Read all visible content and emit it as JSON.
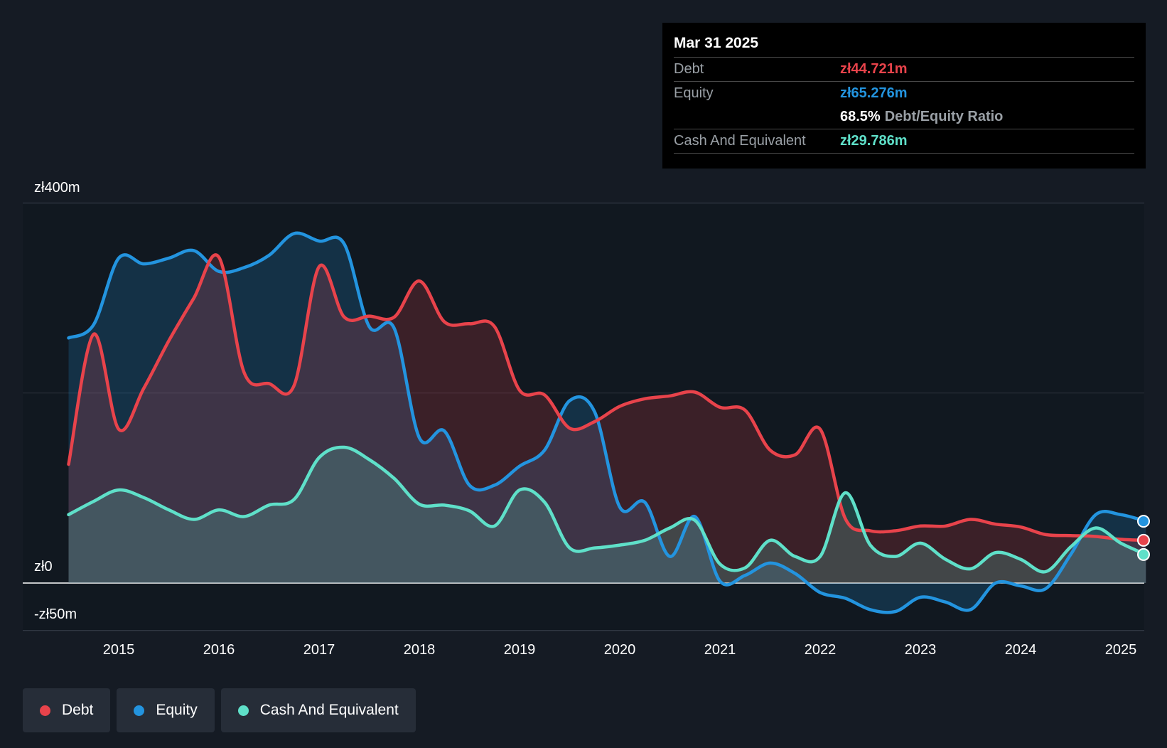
{
  "chart_data": {
    "type": "area",
    "y_axis": {
      "top_label": "zł400m",
      "zero_label": "zł0",
      "bottom_label": "-zł50m",
      "ylim": [
        -50,
        400
      ]
    },
    "x_ticks": [
      "2015",
      "2016",
      "2017",
      "2018",
      "2019",
      "2020",
      "2021",
      "2022",
      "2023",
      "2024",
      "2025"
    ],
    "grid": true,
    "legend_position": "bottom-left",
    "series": [
      {
        "name": "Debt",
        "color": "#e8434b",
        "points": [
          [
            2014.5,
            125
          ],
          [
            2014.75,
            262
          ],
          [
            2015.0,
            162
          ],
          [
            2015.25,
            205
          ],
          [
            2015.5,
            255
          ],
          [
            2015.75,
            300
          ],
          [
            2016.0,
            343
          ],
          [
            2016.25,
            222
          ],
          [
            2016.5,
            210
          ],
          [
            2016.75,
            208
          ],
          [
            2017.0,
            333
          ],
          [
            2017.25,
            280
          ],
          [
            2017.5,
            281
          ],
          [
            2017.75,
            280
          ],
          [
            2018.0,
            318
          ],
          [
            2018.25,
            275
          ],
          [
            2018.5,
            273
          ],
          [
            2018.75,
            270
          ],
          [
            2019.0,
            203
          ],
          [
            2019.25,
            198
          ],
          [
            2019.5,
            163
          ],
          [
            2019.75,
            170
          ],
          [
            2020.0,
            186
          ],
          [
            2020.25,
            194
          ],
          [
            2020.5,
            197
          ],
          [
            2020.75,
            201
          ],
          [
            2021.0,
            185
          ],
          [
            2021.25,
            182
          ],
          [
            2021.5,
            140
          ],
          [
            2021.75,
            135
          ],
          [
            2022.0,
            162
          ],
          [
            2022.25,
            68
          ],
          [
            2022.5,
            55
          ],
          [
            2022.75,
            55
          ],
          [
            2023.0,
            60
          ],
          [
            2023.25,
            60
          ],
          [
            2023.5,
            67
          ],
          [
            2023.75,
            62
          ],
          [
            2024.0,
            59
          ],
          [
            2024.25,
            51
          ],
          [
            2024.5,
            50
          ],
          [
            2024.75,
            49
          ],
          [
            2025.0,
            46
          ],
          [
            2025.25,
            45
          ]
        ]
      },
      {
        "name": "Equity",
        "color": "#2394df",
        "points": [
          [
            2014.5,
            258
          ],
          [
            2014.75,
            272
          ],
          [
            2015.0,
            342
          ],
          [
            2015.25,
            336
          ],
          [
            2015.5,
            342
          ],
          [
            2015.75,
            350
          ],
          [
            2016.0,
            328
          ],
          [
            2016.25,
            332
          ],
          [
            2016.5,
            345
          ],
          [
            2016.75,
            368
          ],
          [
            2017.0,
            360
          ],
          [
            2017.25,
            357
          ],
          [
            2017.5,
            270
          ],
          [
            2017.75,
            268
          ],
          [
            2018.0,
            153
          ],
          [
            2018.25,
            160
          ],
          [
            2018.5,
            103
          ],
          [
            2018.75,
            103
          ],
          [
            2019.0,
            123
          ],
          [
            2019.25,
            140
          ],
          [
            2019.5,
            192
          ],
          [
            2019.75,
            180
          ],
          [
            2020.0,
            80
          ],
          [
            2020.25,
            85
          ],
          [
            2020.5,
            28
          ],
          [
            2020.75,
            70
          ],
          [
            2021.0,
            2
          ],
          [
            2021.25,
            8
          ],
          [
            2021.5,
            21
          ],
          [
            2021.75,
            10
          ],
          [
            2022.0,
            -10
          ],
          [
            2022.25,
            -16
          ],
          [
            2022.5,
            -28
          ],
          [
            2022.75,
            -30
          ],
          [
            2023.0,
            -15
          ],
          [
            2023.25,
            -20
          ],
          [
            2023.5,
            -28
          ],
          [
            2023.75,
            0
          ],
          [
            2024.0,
            -3
          ],
          [
            2024.25,
            -6
          ],
          [
            2024.5,
            30
          ],
          [
            2024.75,
            72
          ],
          [
            2025.0,
            72
          ],
          [
            2025.25,
            65
          ]
        ]
      },
      {
        "name": "Cash And Equivalent",
        "color": "#5fe0c9",
        "points": [
          [
            2014.5,
            72
          ],
          [
            2014.75,
            86
          ],
          [
            2015.0,
            98
          ],
          [
            2015.25,
            90
          ],
          [
            2015.5,
            77
          ],
          [
            2015.75,
            67
          ],
          [
            2016.0,
            77
          ],
          [
            2016.25,
            70
          ],
          [
            2016.5,
            82
          ],
          [
            2016.75,
            88
          ],
          [
            2017.0,
            132
          ],
          [
            2017.25,
            143
          ],
          [
            2017.5,
            130
          ],
          [
            2017.75,
            110
          ],
          [
            2018.0,
            83
          ],
          [
            2018.25,
            82
          ],
          [
            2018.5,
            76
          ],
          [
            2018.75,
            60
          ],
          [
            2019.0,
            98
          ],
          [
            2019.25,
            85
          ],
          [
            2019.5,
            37
          ],
          [
            2019.75,
            37
          ],
          [
            2020.0,
            40
          ],
          [
            2020.25,
            45
          ],
          [
            2020.5,
            58
          ],
          [
            2020.75,
            66
          ],
          [
            2021.0,
            20
          ],
          [
            2021.25,
            16
          ],
          [
            2021.5,
            45
          ],
          [
            2021.75,
            28
          ],
          [
            2022.0,
            28
          ],
          [
            2022.25,
            95
          ],
          [
            2022.5,
            40
          ],
          [
            2022.75,
            28
          ],
          [
            2023.0,
            42
          ],
          [
            2023.25,
            25
          ],
          [
            2023.5,
            15
          ],
          [
            2023.75,
            32
          ],
          [
            2024.0,
            25
          ],
          [
            2024.25,
            12
          ],
          [
            2024.5,
            38
          ],
          [
            2024.75,
            58
          ],
          [
            2025.0,
            42
          ],
          [
            2025.25,
            30
          ]
        ]
      }
    ]
  },
  "tooltip": {
    "date": "Mar 31 2025",
    "debt_label": "Debt",
    "debt_value": "zł44.721m",
    "equity_label": "Equity",
    "equity_value": "zł65.276m",
    "ratio_value": "68.5%",
    "ratio_label": "Debt/Equity Ratio",
    "cash_label": "Cash And Equivalent",
    "cash_value": "zł29.786m"
  },
  "legend": [
    {
      "label": "Debt",
      "color": "#e8434b"
    },
    {
      "label": "Equity",
      "color": "#2394df"
    },
    {
      "label": "Cash And Equivalent",
      "color": "#5fe0c9"
    }
  ]
}
